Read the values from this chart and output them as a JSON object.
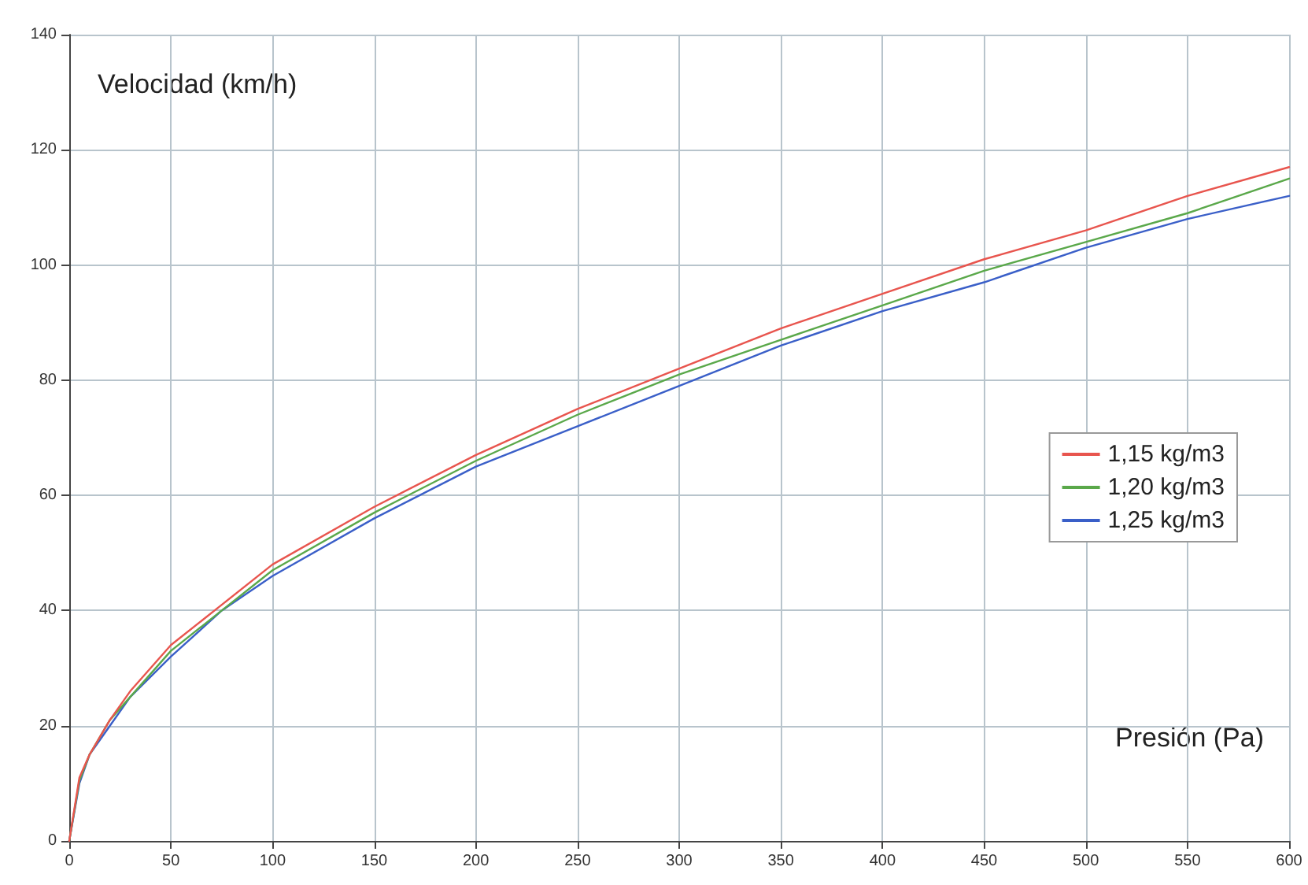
{
  "chart_data": {
    "type": "line",
    "xlabel": "Presión (Pa)",
    "ylabel": "Velocidad (km/h)",
    "x": [
      0,
      5,
      10,
      20,
      30,
      50,
      75,
      100,
      150,
      200,
      250,
      300,
      350,
      400,
      450,
      500,
      550,
      600
    ],
    "series": [
      {
        "name": "1,15 kg/m3",
        "color": "#e8554e",
        "values": [
          0,
          11,
          15,
          21,
          26,
          34,
          41,
          48,
          58,
          67,
          75,
          82,
          89,
          95,
          101,
          106,
          112,
          117
        ]
      },
      {
        "name": "1,20 kg/m3",
        "color": "#5aa84a",
        "values": [
          0,
          10.5,
          15,
          21,
          25,
          33,
          40,
          47,
          57,
          66,
          74,
          81,
          87,
          93,
          99,
          104,
          109,
          115
        ]
      },
      {
        "name": "1,25 kg/m3",
        "color": "#3a5fc8",
        "values": [
          0,
          10,
          15,
          20,
          25,
          32,
          40,
          46,
          56,
          65,
          72,
          79,
          86,
          92,
          97,
          103,
          108,
          112
        ]
      }
    ],
    "xlim": [
      0,
      600
    ],
    "xticks": [
      0,
      50,
      100,
      150,
      200,
      250,
      300,
      350,
      400,
      450,
      500,
      550,
      600
    ],
    "ylim": [
      0,
      140
    ],
    "yticks": [
      0,
      20,
      40,
      60,
      80,
      100,
      120,
      140
    ],
    "grid": true,
    "legend": "right",
    "marker": "none",
    "line_style": "solid"
  }
}
